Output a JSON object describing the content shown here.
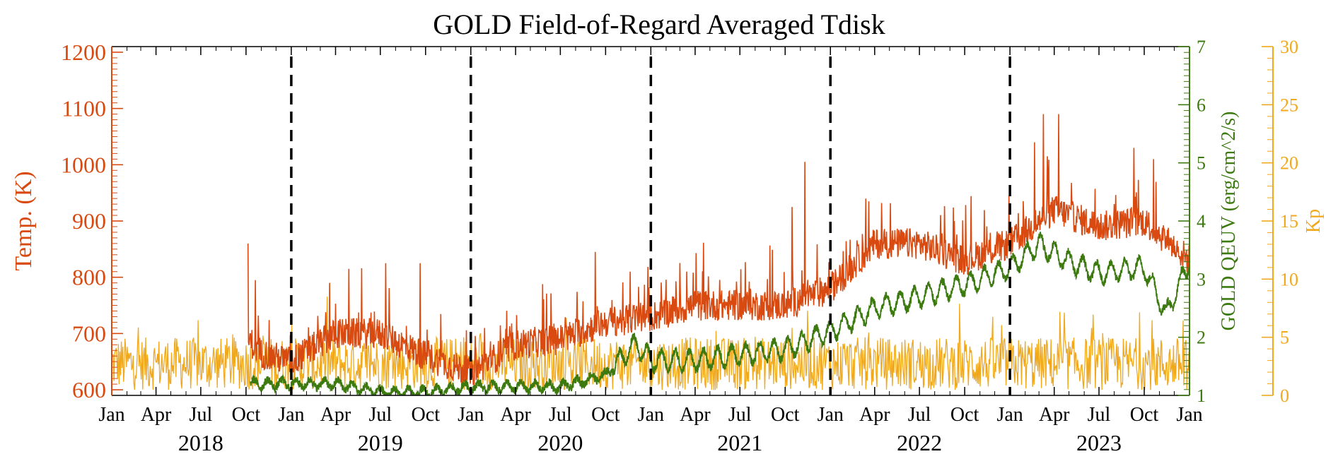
{
  "colors": {
    "temp": "#d94a10",
    "qeuv": "#3c7a10",
    "kp": "#f0a81c",
    "axis": "#000000",
    "divider": "#000000"
  },
  "chart_data": {
    "type": "line",
    "title": "GOLD Field-of-Regard Averaged Tdisk",
    "x_axis": {
      "range": [
        "2018-01-01",
        "2024-01-01"
      ],
      "tick_dates": [
        "2018-01-01",
        "2018-04-01",
        "2018-07-01",
        "2018-10-01",
        "2019-01-01",
        "2019-04-01",
        "2019-07-01",
        "2019-10-01",
        "2020-01-01",
        "2020-04-01",
        "2020-07-01",
        "2020-10-01",
        "2021-01-01",
        "2021-04-01",
        "2021-07-01",
        "2021-10-01",
        "2022-01-01",
        "2022-04-01",
        "2022-07-01",
        "2022-10-01",
        "2023-01-01",
        "2023-04-01",
        "2023-07-01",
        "2023-10-01",
        "2024-01-01"
      ],
      "tick_labels": [
        "Jan",
        "Apr",
        "Jul",
        "Oct",
        "Jan",
        "Apr",
        "Jul",
        "Oct",
        "Jan",
        "Apr",
        "Jul",
        "Oct",
        "Jan",
        "Apr",
        "Jul",
        "Oct",
        "Jan",
        "Apr",
        "Jul",
        "Oct",
        "Jan",
        "Apr",
        "Jul",
        "Oct",
        "Jan"
      ],
      "year_labels": [
        {
          "label": "2018",
          "date": "2018-07-01"
        },
        {
          "label": "2019",
          "date": "2019-07-01"
        },
        {
          "label": "2020",
          "date": "2020-07-01"
        },
        {
          "label": "2021",
          "date": "2021-07-01"
        },
        {
          "label": "2022",
          "date": "2022-07-01"
        },
        {
          "label": "2023",
          "date": "2023-07-01"
        }
      ],
      "year_dividers": [
        "2019-01-01",
        "2020-01-01",
        "2021-01-01",
        "2022-01-01",
        "2023-01-01"
      ]
    },
    "y_axes": [
      {
        "id": "temp",
        "label": "Temp. (K)",
        "side": "left",
        "range": [
          590,
          1210
        ],
        "ticks": [
          600,
          700,
          800,
          900,
          1000,
          1100,
          1200
        ]
      },
      {
        "id": "qeuv",
        "label": "GOLD QEUV (erg/cm^2/s)",
        "side": "right-inner",
        "range": [
          1,
          7
        ],
        "ticks": [
          1,
          2,
          3,
          4,
          5,
          6,
          7
        ]
      },
      {
        "id": "kp",
        "label": "Kp",
        "side": "right-outer",
        "range": [
          0,
          30
        ],
        "ticks": [
          0,
          5,
          10,
          15,
          20,
          25,
          30
        ]
      }
    ],
    "series": [
      {
        "id": "temp",
        "axis": "temp",
        "start": "2018-10-05",
        "end": "2024-01-01",
        "x": [
          "2018-10-05",
          "2018-11-01",
          "2019-01-01",
          "2019-04-01",
          "2019-07-01",
          "2019-10-01",
          "2020-01-01",
          "2020-04-01",
          "2020-07-01",
          "2020-10-01",
          "2021-01-01",
          "2021-04-01",
          "2021-07-01",
          "2021-10-01",
          "2022-01-01",
          "2022-04-01",
          "2022-07-01",
          "2022-10-01",
          "2023-01-01",
          "2023-04-01",
          "2023-07-01",
          "2023-10-01",
          "2024-01-01"
        ],
        "y": [
          690,
          665,
          650,
          700,
          700,
          660,
          630,
          680,
          690,
          720,
          730,
          750,
          750,
          750,
          780,
          860,
          860,
          830,
          860,
          920,
          890,
          900,
          830
        ],
        "spikes": [
          [
            "2018-10-05",
            860
          ],
          [
            "2018-10-20",
            795
          ],
          [
            "2019-03-20",
            790
          ],
          [
            "2019-04-28",
            815
          ],
          [
            "2019-07-12",
            825
          ],
          [
            "2019-09-20",
            825
          ],
          [
            "2020-09-10",
            845
          ],
          [
            "2020-11-20",
            810
          ],
          [
            "2021-03-15",
            810
          ],
          [
            "2021-11-10",
            1005
          ],
          [
            "2021-10-15",
            925
          ],
          [
            "2022-03-20",
            935
          ],
          [
            "2022-09-10",
            900
          ],
          [
            "2023-03-10",
            1090
          ],
          [
            "2023-04-10",
            1090
          ],
          [
            "2023-02-20",
            1040
          ],
          [
            "2023-09-10",
            1030
          ],
          [
            "2023-10-20",
            1010
          ]
        ]
      },
      {
        "id": "qeuv",
        "axis": "qeuv",
        "start": "2018-10-10",
        "end": "2024-01-01",
        "x": [
          "2018-10-10",
          "2019-01-01",
          "2019-04-01",
          "2019-07-01",
          "2019-10-01",
          "2020-01-01",
          "2020-04-01",
          "2020-07-01",
          "2020-10-01",
          "2020-12-01",
          "2021-01-01",
          "2021-04-01",
          "2021-07-01",
          "2021-10-01",
          "2022-01-01",
          "2022-04-01",
          "2022-07-01",
          "2022-10-01",
          "2023-01-01",
          "2023-03-01",
          "2023-05-01",
          "2023-07-01",
          "2023-10-01",
          "2023-11-15",
          "2024-01-01"
        ],
        "y": [
          1.2,
          1.2,
          1.2,
          1.05,
          1.05,
          1.15,
          1.15,
          1.15,
          1.35,
          1.9,
          1.6,
          1.6,
          1.7,
          1.8,
          2.1,
          2.5,
          2.7,
          2.9,
          3.2,
          3.6,
          3.3,
          3.1,
          3.2,
          2.4,
          3.3
        ]
      },
      {
        "id": "kp",
        "axis": "kp",
        "start": "2018-01-01",
        "end": "2024-01-01",
        "mean": 2.5,
        "amplitude": 3.5
      }
    ]
  }
}
